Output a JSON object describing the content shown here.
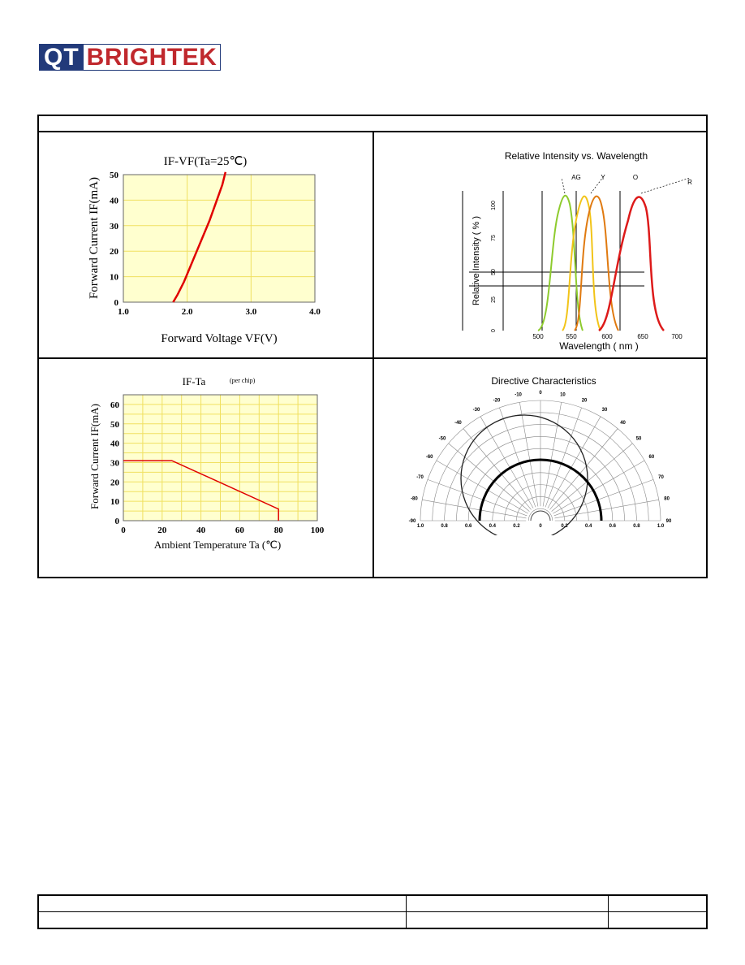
{
  "logo": {
    "part1": "QT",
    "part2": "BRIGHTEK"
  },
  "chart_data": [
    {
      "type": "line",
      "title": "IF-VF(Ta=25℃)",
      "xlabel": "Forward Voltage VF(V)",
      "ylabel": "Forward Current IF(mA)",
      "x_ticks": [
        "1.0",
        "2.0",
        "3.0",
        "4.0"
      ],
      "y_ticks": [
        "0",
        "10",
        "20",
        "30",
        "40",
        "50"
      ],
      "xlim": [
        1.0,
        4.0
      ],
      "ylim": [
        0,
        50
      ],
      "series": [
        {
          "color": "#e00000",
          "x": [
            1.78,
            1.85,
            1.95,
            2.05,
            2.15,
            2.25,
            2.35,
            2.45,
            2.55,
            2.6
          ],
          "y": [
            0,
            3,
            8,
            14,
            20,
            26,
            32,
            39,
            46,
            51
          ]
        }
      ]
    },
    {
      "type": "line",
      "title": "Relative Intensity vs. Wavelength",
      "xlabel": "Wavelength ( nm )",
      "ylabel": "Relative Intensity ( % )",
      "x_ticks": [
        "500",
        "550",
        "600",
        "650",
        "700"
      ],
      "y_ticks": [
        "0",
        "25",
        "50",
        "75",
        "100"
      ],
      "curve_labels": [
        "AG",
        "Y",
        "O",
        "R"
      ],
      "series": [
        {
          "name": "AG",
          "color": "#8ecb2e"
        },
        {
          "name": "Y",
          "color": "#f2c418"
        },
        {
          "name": "O",
          "color": "#e07a10"
        },
        {
          "name": "R",
          "color": "#dd1a1a"
        }
      ]
    },
    {
      "type": "line",
      "title": "IF-Ta",
      "subtitle": "(per chip)",
      "xlabel": "Ambient Temperature Ta (℃)",
      "ylabel": "Forward Current IF(mA)",
      "x_ticks": [
        "0",
        "20",
        "40",
        "60",
        "80",
        "100"
      ],
      "y_ticks": [
        "0",
        "10",
        "20",
        "30",
        "40",
        "50",
        "60"
      ],
      "xlim": [
        0,
        100
      ],
      "ylim": [
        0,
        65
      ],
      "series": [
        {
          "color": "#e00000",
          "x": [
            0,
            25,
            80,
            80
          ],
          "y": [
            31,
            31,
            6,
            0
          ]
        }
      ]
    },
    {
      "type": "other",
      "title": "Directive Characteristics",
      "angle_labels_left": [
        "-10",
        "-20",
        "-30",
        "-40",
        "-50",
        "-60",
        "-70",
        "-80",
        "-90"
      ],
      "angle_labels_right": [
        "0",
        "10",
        "20",
        "30",
        "40",
        "50",
        "60",
        "70",
        "80",
        "90"
      ],
      "radial_labels": [
        "1.0",
        "0.8",
        "0.6",
        "0.4",
        "0.2",
        "0",
        "0.2",
        "0.4",
        "0.6",
        "0.8",
        "1.0"
      ]
    }
  ]
}
